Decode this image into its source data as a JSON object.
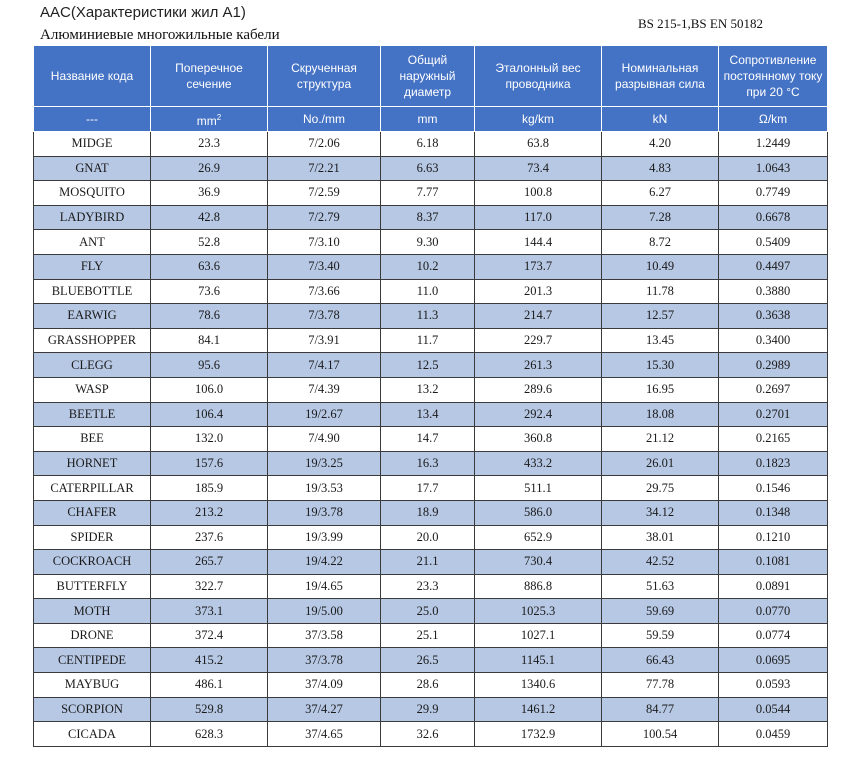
{
  "header": {
    "title": "AAC(Характеристики жил A1)",
    "subtitle": "Алюминиевые многожильные кабели",
    "standard": "BS 215-1,BS EN 50182"
  },
  "columns": [
    {
      "label": "Название кода",
      "unit": "---"
    },
    {
      "label": "Поперечное сечение",
      "unit": "mm",
      "unit_sup": "2"
    },
    {
      "label": "Скрученная структура",
      "unit": "No./mm"
    },
    {
      "label": "Общий наружный диаметр",
      "unit": "mm"
    },
    {
      "label": "Эталонный вес проводника",
      "unit": "kg/km"
    },
    {
      "label": "Номинальная разрывная сила",
      "unit": "kN"
    },
    {
      "label": "Сопротивление постоянному току при 20 °C",
      "unit": "Ω/km"
    }
  ],
  "rows": [
    [
      "MIDGE",
      "23.3",
      "7/2.06",
      "6.18",
      "63.8",
      "4.20",
      "1.2449"
    ],
    [
      "GNAT",
      "26.9",
      "7/2.21",
      "6.63",
      "73.4",
      "4.83",
      "1.0643"
    ],
    [
      "MOSQUITO",
      "36.9",
      "7/2.59",
      "7.77",
      "100.8",
      "6.27",
      "0.7749"
    ],
    [
      "LADYBIRD",
      "42.8",
      "7/2.79",
      "8.37",
      "117.0",
      "7.28",
      "0.6678"
    ],
    [
      "ANT",
      "52.8",
      "7/3.10",
      "9.30",
      "144.4",
      "8.72",
      "0.5409"
    ],
    [
      "FLY",
      "63.6",
      "7/3.40",
      "10.2",
      "173.7",
      "10.49",
      "0.4497"
    ],
    [
      "BLUEBOTTLE",
      "73.6",
      "7/3.66",
      "11.0",
      "201.3",
      "11.78",
      "0.3880"
    ],
    [
      "EARWIG",
      "78.6",
      "7/3.78",
      "11.3",
      "214.7",
      "12.57",
      "0.3638"
    ],
    [
      "GRASSHOPPER",
      "84.1",
      "7/3.91",
      "11.7",
      "229.7",
      "13.45",
      "0.3400"
    ],
    [
      "CLEGG",
      "95.6",
      "7/4.17",
      "12.5",
      "261.3",
      "15.30",
      "0.2989"
    ],
    [
      "WASP",
      "106.0",
      "7/4.39",
      "13.2",
      "289.6",
      "16.95",
      "0.2697"
    ],
    [
      "BEETLE",
      "106.4",
      "19/2.67",
      "13.4",
      "292.4",
      "18.08",
      "0.2701"
    ],
    [
      "BEE",
      "132.0",
      "7/4.90",
      "14.7",
      "360.8",
      "21.12",
      "0.2165"
    ],
    [
      "HORNET",
      "157.6",
      "19/3.25",
      "16.3",
      "433.2",
      "26.01",
      "0.1823"
    ],
    [
      "CATERPILLAR",
      "185.9",
      "19/3.53",
      "17.7",
      "511.1",
      "29.75",
      "0.1546"
    ],
    [
      "CHAFER",
      "213.2",
      "19/3.78",
      "18.9",
      "586.0",
      "34.12",
      "0.1348"
    ],
    [
      "SPIDER",
      "237.6",
      "19/3.99",
      "20.0",
      "652.9",
      "38.01",
      "0.1210"
    ],
    [
      "COCKROACH",
      "265.7",
      "19/4.22",
      "21.1",
      "730.4",
      "42.52",
      "0.1081"
    ],
    [
      "BUTTERFLY",
      "322.7",
      "19/4.65",
      "23.3",
      "886.8",
      "51.63",
      "0.0891"
    ],
    [
      "MOTH",
      "373.1",
      "19/5.00",
      "25.0",
      "1025.3",
      "59.69",
      "0.0770"
    ],
    [
      "DRONE",
      "372.4",
      "37/3.58",
      "25.1",
      "1027.1",
      "59.59",
      "0.0774"
    ],
    [
      "CENTIPEDE",
      "415.2",
      "37/3.78",
      "26.5",
      "1145.1",
      "66.43",
      "0.0695"
    ],
    [
      "MAYBUG",
      "486.1",
      "37/4.09",
      "28.6",
      "1340.6",
      "77.78",
      "0.0593"
    ],
    [
      "SCORPION",
      "529.8",
      "37/4.27",
      "29.9",
      "1461.2",
      "84.77",
      "0.0544"
    ],
    [
      "CICADA",
      "628.3",
      "37/4.65",
      "32.6",
      "1732.9",
      "100.54",
      "0.0459"
    ]
  ]
}
